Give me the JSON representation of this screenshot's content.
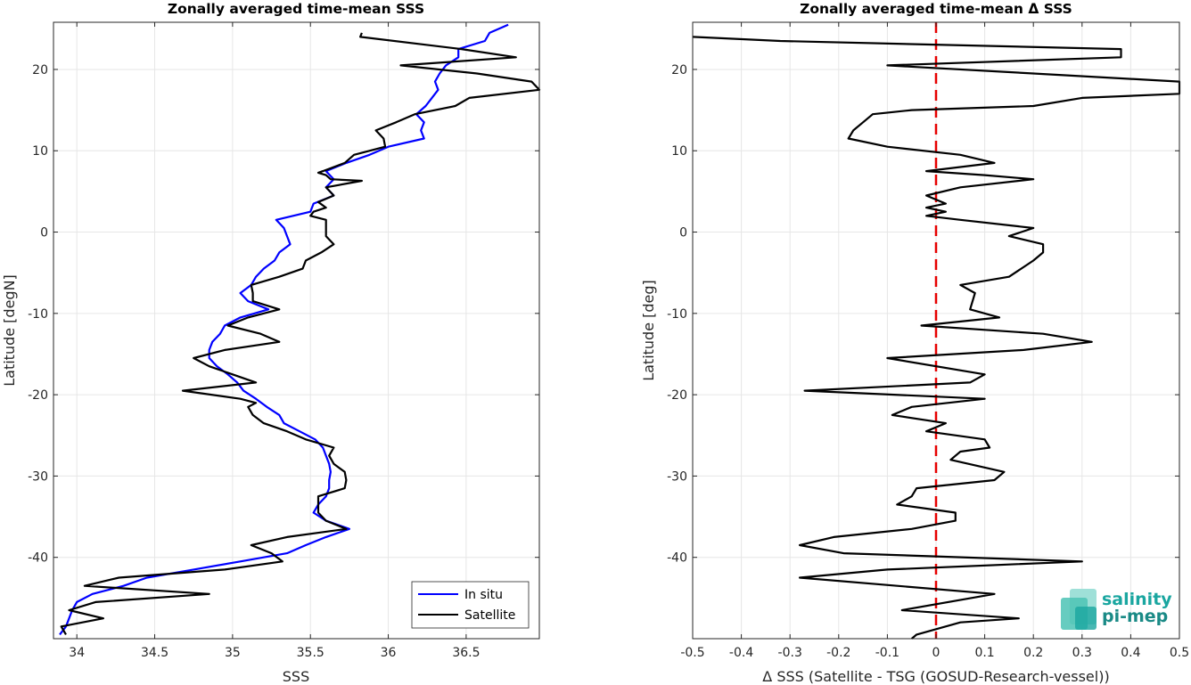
{
  "chart_data": [
    {
      "type": "line",
      "title": "Zonally averaged time-mean SSS",
      "xlabel": "SSS",
      "ylabel": "Latitude [degN]",
      "xlim": [
        33.85,
        36.97
      ],
      "ylim": [
        -50,
        25.8
      ],
      "xticks": [
        34,
        34.5,
        35,
        35.5,
        36,
        36.5
      ],
      "xtick_labels": [
        "34",
        "34.5",
        "35",
        "35.5",
        "36",
        "36.5"
      ],
      "yticks": [
        -40,
        -30,
        -20,
        -10,
        0,
        10,
        20
      ],
      "ytick_labels": [
        "-40",
        "-30",
        "-20",
        "-10",
        "0",
        "10",
        "20"
      ],
      "grid": true,
      "legend_position": "bottom-right",
      "series": [
        {
          "name": "In situ",
          "color": "#0000ff",
          "points": [
            [
              36.77,
              25.5
            ],
            [
              36.65,
              24.5
            ],
            [
              36.62,
              23.5
            ],
            [
              36.45,
              22.5
            ],
            [
              36.45,
              21.5
            ],
            [
              36.37,
              20.5
            ],
            [
              36.33,
              19.5
            ],
            [
              36.3,
              18.5
            ],
            [
              36.32,
              17.5
            ],
            [
              36.28,
              16.5
            ],
            [
              36.24,
              15.5
            ],
            [
              36.18,
              14.5
            ],
            [
              36.23,
              13.5
            ],
            [
              36.21,
              12.5
            ],
            [
              36.23,
              11.5
            ],
            [
              36.0,
              10.5
            ],
            [
              35.88,
              9.5
            ],
            [
              35.73,
              8.5
            ],
            [
              35.6,
              7.5
            ],
            [
              35.65,
              6.5
            ],
            [
              35.6,
              5.5
            ],
            [
              35.65,
              4.5
            ],
            [
              35.52,
              3.5
            ],
            [
              35.5,
              2.5
            ],
            [
              35.28,
              1.5
            ],
            [
              35.33,
              0.5
            ],
            [
              35.35,
              -0.5
            ],
            [
              35.37,
              -1.5
            ],
            [
              35.3,
              -2.5
            ],
            [
              35.27,
              -3.5
            ],
            [
              35.2,
              -4.5
            ],
            [
              35.15,
              -5.5
            ],
            [
              35.12,
              -6.5
            ],
            [
              35.05,
              -7.5
            ],
            [
              35.1,
              -8.5
            ],
            [
              35.23,
              -9.5
            ],
            [
              35.05,
              -10.5
            ],
            [
              34.95,
              -11.5
            ],
            [
              34.92,
              -12.5
            ],
            [
              34.87,
              -13.5
            ],
            [
              34.85,
              -14.5
            ],
            [
              34.85,
              -15.5
            ],
            [
              34.9,
              -16.5
            ],
            [
              34.97,
              -17.5
            ],
            [
              35.03,
              -18.5
            ],
            [
              35.07,
              -19.5
            ],
            [
              35.15,
              -20.5
            ],
            [
              35.22,
              -21.5
            ],
            [
              35.3,
              -22.5
            ],
            [
              35.33,
              -23.5
            ],
            [
              35.43,
              -24.5
            ],
            [
              35.53,
              -25.5
            ],
            [
              35.58,
              -26.5
            ],
            [
              35.6,
              -27.5
            ],
            [
              35.62,
              -28.5
            ],
            [
              35.63,
              -29.5
            ],
            [
              35.62,
              -30.5
            ],
            [
              35.62,
              -31.5
            ],
            [
              35.6,
              -32.5
            ],
            [
              35.55,
              -33.5
            ],
            [
              35.52,
              -34.5
            ],
            [
              35.6,
              -35.5
            ],
            [
              35.75,
              -36.5
            ],
            [
              35.6,
              -37.5
            ],
            [
              35.47,
              -38.5
            ],
            [
              35.35,
              -39.5
            ],
            [
              35.05,
              -40.5
            ],
            [
              34.75,
              -41.5
            ],
            [
              34.45,
              -42.5
            ],
            [
              34.3,
              -43.5
            ],
            [
              34.1,
              -44.5
            ],
            [
              34.0,
              -45.5
            ],
            [
              33.97,
              -46.5
            ],
            [
              33.95,
              -47.5
            ],
            [
              33.93,
              -48.5
            ],
            [
              33.89,
              -49.5
            ]
          ]
        },
        {
          "name": "Satellite",
          "color": "#000000",
          "points": [
            [
              35.83,
              24.5
            ],
            [
              35.82,
              24.0
            ],
            [
              36.47,
              22.5
            ],
            [
              36.82,
              21.5
            ],
            [
              36.08,
              20.5
            ],
            [
              36.57,
              19.5
            ],
            [
              36.92,
              18.5
            ],
            [
              36.97,
              17.5
            ],
            [
              36.52,
              16.5
            ],
            [
              36.43,
              15.5
            ],
            [
              36.17,
              14.5
            ],
            [
              36.05,
              13.5
            ],
            [
              35.92,
              12.5
            ],
            [
              35.97,
              11.5
            ],
            [
              35.98,
              10.5
            ],
            [
              35.78,
              9.5
            ],
            [
              35.72,
              8.5
            ],
            [
              35.58,
              7.5
            ],
            [
              35.55,
              7.3
            ],
            [
              35.6,
              7.0
            ],
            [
              35.63,
              6.5
            ],
            [
              35.83,
              6.3
            ],
            [
              35.6,
              5.5
            ],
            [
              35.65,
              4.5
            ],
            [
              35.55,
              3.7
            ],
            [
              35.6,
              3.0
            ],
            [
              35.52,
              2.5
            ],
            [
              35.5,
              2.0
            ],
            [
              35.6,
              1.5
            ],
            [
              35.6,
              0.5
            ],
            [
              35.6,
              -0.5
            ],
            [
              35.65,
              -1.5
            ],
            [
              35.57,
              -2.5
            ],
            [
              35.47,
              -3.5
            ],
            [
              35.45,
              -4.5
            ],
            [
              35.3,
              -5.5
            ],
            [
              35.12,
              -6.5
            ],
            [
              35.13,
              -7.5
            ],
            [
              35.13,
              -8.5
            ],
            [
              35.3,
              -9.5
            ],
            [
              35.1,
              -10.5
            ],
            [
              34.97,
              -11.5
            ],
            [
              35.18,
              -12.5
            ],
            [
              35.3,
              -13.5
            ],
            [
              34.95,
              -14.5
            ],
            [
              34.75,
              -15.5
            ],
            [
              34.85,
              -16.5
            ],
            [
              35.0,
              -17.5
            ],
            [
              35.15,
              -18.5
            ],
            [
              34.68,
              -19.5
            ],
            [
              35.05,
              -20.5
            ],
            [
              35.15,
              -21.0
            ],
            [
              35.1,
              -21.5
            ],
            [
              35.13,
              -22.5
            ],
            [
              35.2,
              -23.5
            ],
            [
              35.35,
              -24.5
            ],
            [
              35.47,
              -25.5
            ],
            [
              35.65,
              -26.5
            ],
            [
              35.62,
              -27.5
            ],
            [
              35.65,
              -28.5
            ],
            [
              35.72,
              -29.5
            ],
            [
              35.73,
              -30.5
            ],
            [
              35.72,
              -31.5
            ],
            [
              35.55,
              -32.5
            ],
            [
              35.55,
              -33.5
            ],
            [
              35.55,
              -34.5
            ],
            [
              35.6,
              -35.5
            ],
            [
              35.73,
              -36.5
            ],
            [
              35.35,
              -37.5
            ],
            [
              35.12,
              -38.5
            ],
            [
              35.25,
              -39.5
            ],
            [
              35.32,
              -40.5
            ],
            [
              34.95,
              -41.5
            ],
            [
              34.27,
              -42.5
            ],
            [
              34.05,
              -43.5
            ],
            [
              34.85,
              -44.5
            ],
            [
              34.12,
              -45.5
            ],
            [
              33.95,
              -46.5
            ],
            [
              34.17,
              -47.5
            ],
            [
              33.9,
              -48.5
            ],
            [
              33.93,
              -49.5
            ]
          ]
        }
      ]
    },
    {
      "type": "line",
      "title": "Zonally averaged time-mean Δ SSS",
      "xlabel": "Δ SSS (Satellite - TSG (GOSUD-Research-vessel))",
      "ylabel": "Latitude [deg]",
      "xlim": [
        -0.5,
        0.5
      ],
      "ylim": [
        -50,
        25.8
      ],
      "xticks": [
        -0.5,
        -0.4,
        -0.3,
        -0.2,
        -0.1,
        0,
        0.1,
        0.2,
        0.3,
        0.4,
        0.5
      ],
      "xtick_labels": [
        "-0.5",
        "-0.4",
        "-0.3",
        "-0.2",
        "-0.1",
        "0",
        "0.1",
        "0.2",
        "0.3",
        "0.4",
        "0.5"
      ],
      "yticks": [
        -40,
        -30,
        -20,
        -10,
        0,
        10,
        20
      ],
      "ytick_labels": [
        "-40",
        "-30",
        "-20",
        "-10",
        "0",
        "10",
        "20"
      ],
      "grid": true,
      "reference_line": {
        "x": 0,
        "color": "#e60000",
        "style": "dashed"
      },
      "series": [
        {
          "color": "#000000",
          "points": [
            [
              -0.5,
              24.0
            ],
            [
              -0.32,
              23.5
            ],
            [
              0.38,
              22.5
            ],
            [
              0.38,
              21.5
            ],
            [
              -0.1,
              20.5
            ],
            [
              0.2,
              19.5
            ],
            [
              0.5,
              18.5
            ],
            [
              0.5,
              17.5
            ],
            [
              0.5,
              17.0
            ],
            [
              0.3,
              16.5
            ],
            [
              0.2,
              15.5
            ],
            [
              -0.05,
              15.0
            ],
            [
              -0.13,
              14.5
            ],
            [
              -0.15,
              13.5
            ],
            [
              -0.17,
              12.5
            ],
            [
              -0.18,
              11.5
            ],
            [
              -0.1,
              10.5
            ],
            [
              0.05,
              9.5
            ],
            [
              0.12,
              8.5
            ],
            [
              -0.02,
              7.5
            ],
            [
              0.1,
              7.0
            ],
            [
              0.2,
              6.5
            ],
            [
              0.05,
              5.5
            ],
            [
              -0.02,
              4.5
            ],
            [
              0.02,
              3.5
            ],
            [
              -0.02,
              3.0
            ],
            [
              0.02,
              2.5
            ],
            [
              -0.02,
              2.0
            ],
            [
              0.05,
              1.5
            ],
            [
              0.2,
              0.5
            ],
            [
              0.15,
              -0.5
            ],
            [
              0.22,
              -1.5
            ],
            [
              0.22,
              -2.5
            ],
            [
              0.2,
              -3.5
            ],
            [
              0.15,
              -5.5
            ],
            [
              0.05,
              -6.5
            ],
            [
              0.08,
              -7.5
            ],
            [
              0.07,
              -9.5
            ],
            [
              0.13,
              -10.5
            ],
            [
              -0.03,
              -11.5
            ],
            [
              0.22,
              -12.5
            ],
            [
              0.32,
              -13.5
            ],
            [
              0.18,
              -14.5
            ],
            [
              -0.1,
              -15.5
            ],
            [
              0.1,
              -17.5
            ],
            [
              0.07,
              -18.5
            ],
            [
              -0.27,
              -19.5
            ],
            [
              0.1,
              -20.5
            ],
            [
              -0.05,
              -21.5
            ],
            [
              -0.09,
              -22.5
            ],
            [
              0.02,
              -23.5
            ],
            [
              -0.02,
              -24.5
            ],
            [
              0.1,
              -25.5
            ],
            [
              0.11,
              -26.5
            ],
            [
              0.05,
              -27.0
            ],
            [
              0.03,
              -28.0
            ],
            [
              0.14,
              -29.5
            ],
            [
              0.12,
              -30.5
            ],
            [
              -0.04,
              -31.5
            ],
            [
              -0.05,
              -32.5
            ],
            [
              -0.08,
              -33.5
            ],
            [
              0.04,
              -34.5
            ],
            [
              0.04,
              -35.5
            ],
            [
              -0.05,
              -36.5
            ],
            [
              -0.21,
              -37.5
            ],
            [
              -0.28,
              -38.5
            ],
            [
              -0.19,
              -39.5
            ],
            [
              0.3,
              -40.5
            ],
            [
              -0.1,
              -41.5
            ],
            [
              -0.28,
              -42.5
            ],
            [
              0.12,
              -44.5
            ],
            [
              -0.07,
              -46.5
            ],
            [
              0.17,
              -47.5
            ],
            [
              0.05,
              -48.0
            ],
            [
              -0.04,
              -49.5
            ],
            [
              -0.05,
              -50.0
            ]
          ]
        }
      ]
    }
  ],
  "legend": {
    "items": [
      "In situ",
      "Satellite"
    ]
  },
  "logo": {
    "line1": "salinity",
    "line2": "pi-mep",
    "color": "#1aa6a0"
  }
}
